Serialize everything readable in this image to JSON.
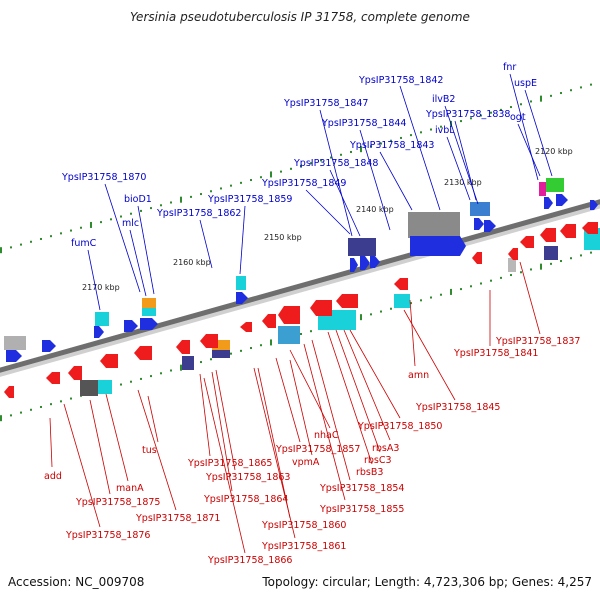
{
  "title": "Yersinia pseudotuberculosis IP 31758, complete genome",
  "footer": {
    "accession": "Accession: NC_009708",
    "summary": "Topology: circular; Length: 4,723,306 bp; Genes: 4,257"
  },
  "colors": {
    "forward_label": "#0000cc",
    "reverse_label": "#cc0000",
    "forward_gene": "#1f2fe0",
    "reverse_gene": "#ee1c1c",
    "backbone": "#6e6e6e",
    "tick": "#2e8b2e",
    "rna_cyan": "#19d1d9",
    "gray_block": "#7a7a7a",
    "navy_block": "#3d3d8f",
    "orange_block": "#f29a1a",
    "green_block": "#33cc33",
    "magenta_block": "#e21f9b"
  },
  "scale_ticks": [
    "2120 kbp",
    "2130 kbp",
    "2140 kbp",
    "2150 kbp",
    "2160 kbp",
    "2170 kbp"
  ],
  "forward_labels": [
    "fnr",
    "uspE",
    "ilvB2",
    "ogt",
    "ivbL",
    "YpsIP31758_1842",
    "YpsIP31758_1838",
    "YpsIP31758_1847",
    "YpsIP31758_1844",
    "YpsIP31758_1843",
    "YpsIP31758_1848",
    "YpsIP31758_1849",
    "YpsIP31758_1870",
    "bioD1",
    "mlc",
    "YpsIP31758_1859",
    "YpsIP31758_1862",
    "fumC"
  ],
  "reverse_labels": [
    "YpsIP31758_1837",
    "YpsIP31758_1841",
    "amn",
    "YpsIP31758_1845",
    "YpsIP31758_1850",
    "rbsA3",
    "rbsC3",
    "rbsB3",
    "YpsIP31758_1854",
    "YpsIP31758_1855",
    "nhaC",
    "YpsIP31758_1857",
    "vpmA",
    "YpsIP31758_1860",
    "YpsIP31758_1861",
    "YpsIP31758_1863",
    "YpsIP31758_1864",
    "YpsIP31758_1865",
    "YpsIP31758_1866",
    "tus",
    "YpsIP31758_1871",
    "manA",
    "YpsIP31758_1875",
    "YpsIP31758_1876",
    "add"
  ]
}
